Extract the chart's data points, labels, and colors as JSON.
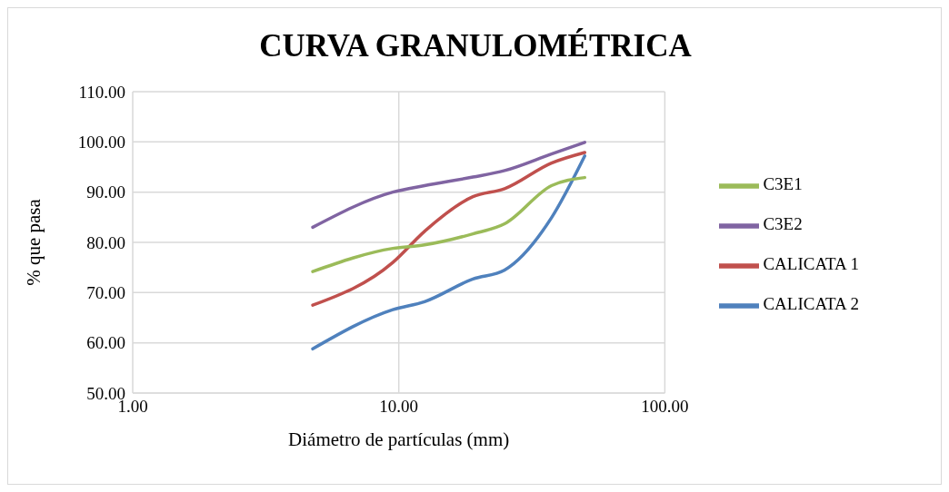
{
  "chart_data": {
    "type": "line",
    "title": "CURVA GRANULOMÉTRICA",
    "xlabel": "Diámetro de partículas (mm)",
    "ylabel": "% que pasa",
    "log": "x",
    "x": [
      4.75,
      9.5,
      12.5,
      19,
      25,
      37.5,
      50
    ],
    "series": [
      {
        "name": "CALICATA 1",
        "color": "#c0504d",
        "values": [
          67.5,
          76.0,
          82.2,
          89.1,
          90.7,
          95.8,
          97.9
        ]
      },
      {
        "name": "CALICATA 2",
        "color": "#4f81bd",
        "values": [
          58.8,
          66.6,
          68.2,
          72.7,
          74.5,
          84.9,
          97.2
        ]
      },
      {
        "name": "C3E1",
        "color": "#9bbb59",
        "values": [
          74.2,
          78.8,
          79.5,
          81.7,
          83.7,
          91.3,
          92.9
        ]
      },
      {
        "name": "C3E2",
        "color": "#8064a2",
        "values": [
          83.0,
          90.0,
          91.3,
          93.0,
          94.3,
          97.6,
          99.9
        ]
      }
    ],
    "xlim": [
      1,
      100
    ],
    "xticks": [
      {
        "value": 1,
        "label": "1.00"
      },
      {
        "value": 10,
        "label": "10.00"
      },
      {
        "value": 100,
        "label": "100.00"
      }
    ],
    "ylim": [
      50,
      110
    ],
    "yticks": [
      {
        "value": 50,
        "label": "50.00"
      },
      {
        "value": 60,
        "label": "60.00"
      },
      {
        "value": 70,
        "label": "70.00"
      },
      {
        "value": 80,
        "label": "80.00"
      },
      {
        "value": 90,
        "label": "90.00"
      },
      {
        "value": 100,
        "label": "100.00"
      },
      {
        "value": 110,
        "label": "110.00"
      }
    ],
    "grid": true,
    "legend": "right",
    "marker": "none",
    "line_style": "solid"
  }
}
